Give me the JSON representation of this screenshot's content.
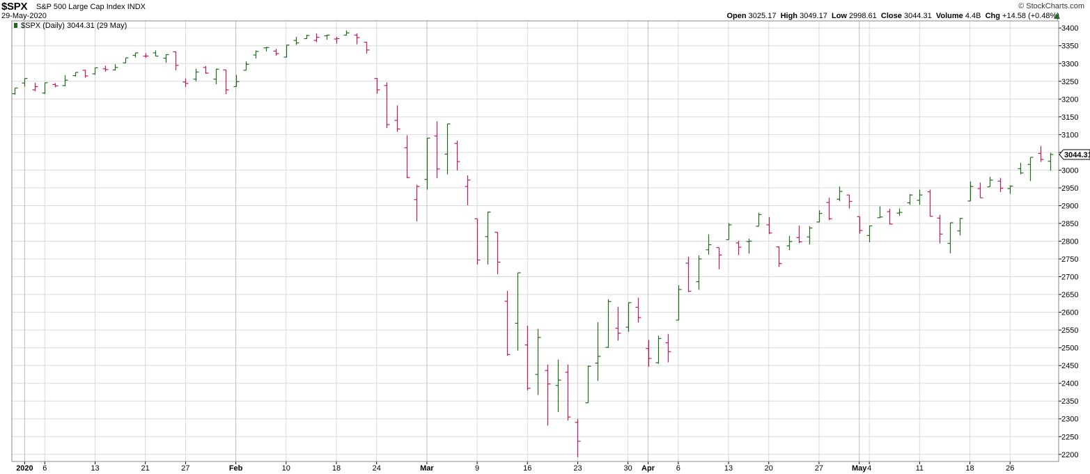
{
  "header": {
    "ticker": "$SPX",
    "company": "S&P 500 Large Cap Index",
    "exchange": "INDX",
    "date": "29-May-2020",
    "brand": "© StockCharts.com",
    "open_label": "Open",
    "open": "3025.17",
    "high_label": "High",
    "high": "3049.17",
    "low_label": "Low",
    "low": "2998.61",
    "close_label": "Close",
    "close": "3044.31",
    "volume_label": "Volume",
    "volume": "4.4B",
    "chg_label": "Chg",
    "chg": "+14.58 (+0.48%)"
  },
  "legend_text": "$SPX (Daily) 3044.31 (29 May)",
  "price_tag": "3044.31",
  "colors": {
    "up": "#1e6b1e",
    "down": "#c2185b",
    "grid": "#d9d9d9",
    "axis": "#000000"
  },
  "chart_data": {
    "type": "ohlc",
    "ylim": [
      2180,
      3420
    ],
    "y_ticks": [
      2200,
      2250,
      2300,
      2350,
      2400,
      2450,
      2500,
      2550,
      2600,
      2650,
      2700,
      2750,
      2800,
      2850,
      2900,
      2950,
      3000,
      3050,
      3100,
      3150,
      3200,
      3250,
      3300,
      3350,
      3400
    ],
    "x_labels": [
      {
        "text": "2020",
        "bar": 1,
        "bold": true
      },
      {
        "text": "6",
        "bar": 3
      },
      {
        "text": "13",
        "bar": 8
      },
      {
        "text": "21",
        "bar": 13
      },
      {
        "text": "27",
        "bar": 17
      },
      {
        "text": "Feb",
        "bar": 22,
        "bold": true
      },
      {
        "text": "10",
        "bar": 27
      },
      {
        "text": "18",
        "bar": 32
      },
      {
        "text": "24",
        "bar": 36
      },
      {
        "text": "Mar",
        "bar": 41,
        "bold": true
      },
      {
        "text": "9",
        "bar": 46
      },
      {
        "text": "16",
        "bar": 51
      },
      {
        "text": "23",
        "bar": 56
      },
      {
        "text": "30",
        "bar": 61
      },
      {
        "text": "Apr",
        "bar": 63,
        "bold": true
      },
      {
        "text": "6",
        "bar": 66
      },
      {
        "text": "13",
        "bar": 71
      },
      {
        "text": "20",
        "bar": 75
      },
      {
        "text": "27",
        "bar": 80
      },
      {
        "text": "May",
        "bar": 84,
        "bold": true
      },
      {
        "text": "4",
        "bar": 85
      },
      {
        "text": "11",
        "bar": 90
      },
      {
        "text": "18",
        "bar": 95
      },
      {
        "text": "26",
        "bar": 99
      }
    ],
    "dates": [
      "2019-12-31",
      "2020-01-02",
      "2020-01-03",
      "2020-01-06",
      "2020-01-07",
      "2020-01-08",
      "2020-01-09",
      "2020-01-10",
      "2020-01-13",
      "2020-01-14",
      "2020-01-15",
      "2020-01-16",
      "2020-01-17",
      "2020-01-21",
      "2020-01-22",
      "2020-01-23",
      "2020-01-24",
      "2020-01-27",
      "2020-01-28",
      "2020-01-29",
      "2020-01-30",
      "2020-01-31",
      "2020-02-03",
      "2020-02-04",
      "2020-02-05",
      "2020-02-06",
      "2020-02-07",
      "2020-02-10",
      "2020-02-11",
      "2020-02-12",
      "2020-02-13",
      "2020-02-14",
      "2020-02-18",
      "2020-02-19",
      "2020-02-20",
      "2020-02-21",
      "2020-02-24",
      "2020-02-25",
      "2020-02-26",
      "2020-02-27",
      "2020-02-28",
      "2020-03-02",
      "2020-03-03",
      "2020-03-04",
      "2020-03-05",
      "2020-03-06",
      "2020-03-09",
      "2020-03-10",
      "2020-03-11",
      "2020-03-12",
      "2020-03-13",
      "2020-03-16",
      "2020-03-17",
      "2020-03-18",
      "2020-03-19",
      "2020-03-20",
      "2020-03-23",
      "2020-03-24",
      "2020-03-25",
      "2020-03-26",
      "2020-03-27",
      "2020-03-30",
      "2020-03-31",
      "2020-04-01",
      "2020-04-02",
      "2020-04-03",
      "2020-04-06",
      "2020-04-07",
      "2020-04-08",
      "2020-04-09",
      "2020-04-13",
      "2020-04-14",
      "2020-04-15",
      "2020-04-16",
      "2020-04-17",
      "2020-04-20",
      "2020-04-21",
      "2020-04-22",
      "2020-04-23",
      "2020-04-24",
      "2020-04-27",
      "2020-04-28",
      "2020-04-29",
      "2020-04-30",
      "2020-05-01",
      "2020-05-04",
      "2020-05-05",
      "2020-05-06",
      "2020-05-07",
      "2020-05-08",
      "2020-05-11",
      "2020-05-12",
      "2020-05-13",
      "2020-05-14",
      "2020-05-15",
      "2020-05-18",
      "2020-05-19",
      "2020-05-20",
      "2020-05-21",
      "2020-05-22",
      "2020-05-26",
      "2020-05-27",
      "2020-05-28",
      "2020-05-29"
    ],
    "ohlc": [
      [
        3215,
        3231,
        3212,
        3231
      ],
      [
        3245,
        3258,
        3235,
        3258
      ],
      [
        3226,
        3246,
        3222,
        3235
      ],
      [
        3217,
        3246,
        3214,
        3246
      ],
      [
        3241,
        3245,
        3233,
        3237
      ],
      [
        3238,
        3267,
        3236,
        3253
      ],
      [
        3266,
        3275,
        3263,
        3275
      ],
      [
        3281,
        3282,
        3260,
        3265
      ],
      [
        3271,
        3288,
        3268,
        3288
      ],
      [
        3285,
        3294,
        3277,
        3283
      ],
      [
        3282,
        3298,
        3280,
        3289
      ],
      [
        3302,
        3316,
        3301,
        3316
      ],
      [
        3323,
        3330,
        3317,
        3330
      ],
      [
        3321,
        3329,
        3316,
        3321
      ],
      [
        3330,
        3337,
        3320,
        3321
      ],
      [
        3315,
        3326,
        3302,
        3325
      ],
      [
        3333,
        3334,
        3281,
        3295
      ],
      [
        3248,
        3258,
        3234,
        3244
      ],
      [
        3256,
        3285,
        3250,
        3276
      ],
      [
        3289,
        3293,
        3271,
        3273
      ],
      [
        3256,
        3285,
        3242,
        3284
      ],
      [
        3282,
        3282,
        3214,
        3226
      ],
      [
        3235,
        3268,
        3235,
        3249
      ],
      [
        3281,
        3306,
        3281,
        3298
      ],
      [
        3324,
        3337,
        3314,
        3334
      ],
      [
        3344,
        3347,
        3334,
        3345
      ],
      [
        3335,
        3341,
        3322,
        3328
      ],
      [
        3318,
        3352,
        3317,
        3352
      ],
      [
        3365,
        3375,
        3352,
        3358
      ],
      [
        3370,
        3381,
        3369,
        3379
      ],
      [
        3365,
        3385,
        3360,
        3374
      ],
      [
        3378,
        3381,
        3367,
        3380
      ],
      [
        3369,
        3375,
        3356,
        3370
      ],
      [
        3380,
        3393,
        3379,
        3386
      ],
      [
        3380,
        3385,
        3354,
        3373
      ],
      [
        3360,
        3361,
        3328,
        3338
      ],
      [
        3258,
        3259,
        3215,
        3226
      ],
      [
        3238,
        3247,
        3118,
        3128
      ],
      [
        3140,
        3182,
        3108,
        3116
      ],
      [
        3063,
        3098,
        2977,
        2979
      ],
      [
        2917,
        2959,
        2856,
        2954
      ],
      [
        2974,
        3090,
        2945,
        3090
      ],
      [
        3096,
        3137,
        2977,
        3003
      ],
      [
        3045,
        3130,
        2988,
        3130
      ],
      [
        3075,
        3083,
        2999,
        3024
      ],
      [
        2954,
        2985,
        2901,
        2972
      ],
      [
        2863,
        2863,
        2734,
        2747
      ],
      [
        2813,
        2883,
        2734,
        2882
      ],
      [
        2825,
        2825,
        2707,
        2741
      ],
      [
        2631,
        2660,
        2478,
        2481
      ],
      [
        2569,
        2711,
        2492,
        2711
      ],
      [
        2508,
        2562,
        2380,
        2386
      ],
      [
        2425,
        2553,
        2367,
        2529
      ],
      [
        2436,
        2453,
        2281,
        2398
      ],
      [
        2394,
        2467,
        2319,
        2409
      ],
      [
        2431,
        2453,
        2295,
        2305
      ],
      [
        2290,
        2300,
        2192,
        2237
      ],
      [
        2345,
        2450,
        2345,
        2448
      ],
      [
        2457,
        2572,
        2407,
        2476
      ],
      [
        2501,
        2637,
        2500,
        2630
      ],
      [
        2555,
        2615,
        2520,
        2541
      ],
      [
        2558,
        2627,
        2545,
        2627
      ],
      [
        2614,
        2641,
        2571,
        2585
      ],
      [
        2498,
        2522,
        2447,
        2470
      ],
      [
        2458,
        2534,
        2455,
        2526
      ],
      [
        2514,
        2539,
        2459,
        2489
      ],
      [
        2578,
        2676,
        2578,
        2664
      ],
      [
        2738,
        2756,
        2657,
        2659
      ],
      [
        2686,
        2760,
        2663,
        2750
      ],
      [
        2776,
        2819,
        2762,
        2790
      ],
      [
        2782,
        2782,
        2721,
        2761
      ],
      [
        2804,
        2851,
        2804,
        2846
      ],
      [
        2795,
        2801,
        2761,
        2783
      ],
      [
        2799,
        2807,
        2765,
        2800
      ],
      [
        2842,
        2880,
        2842,
        2875
      ],
      [
        2846,
        2868,
        2820,
        2823
      ],
      [
        2784,
        2785,
        2728,
        2737
      ],
      [
        2787,
        2815,
        2775,
        2799
      ],
      [
        2810,
        2844,
        2794,
        2798
      ],
      [
        2812,
        2842,
        2791,
        2837
      ],
      [
        2854,
        2887,
        2853,
        2878
      ],
      [
        2909,
        2922,
        2859,
        2863
      ],
      [
        2918,
        2954,
        2913,
        2940
      ],
      [
        2930,
        2930,
        2892,
        2912
      ],
      [
        2869,
        2869,
        2821,
        2830
      ],
      [
        2816,
        2844,
        2797,
        2843
      ],
      [
        2866,
        2898,
        2865,
        2868
      ],
      [
        2883,
        2891,
        2847,
        2848
      ],
      [
        2879,
        2892,
        2871,
        2881
      ],
      [
        2908,
        2932,
        2902,
        2930
      ],
      [
        2915,
        2945,
        2902,
        2930
      ],
      [
        2939,
        2945,
        2869,
        2870
      ],
      [
        2865,
        2874,
        2794,
        2820
      ],
      [
        2794,
        2852,
        2766,
        2852
      ],
      [
        2829,
        2865,
        2816,
        2864
      ],
      [
        2913,
        2968,
        2913,
        2954
      ],
      [
        2948,
        2965,
        2922,
        2922
      ],
      [
        2953,
        2981,
        2953,
        2972
      ],
      [
        2969,
        2978,
        2938,
        2949
      ],
      [
        2948,
        2957,
        2933,
        2955
      ],
      [
        3004,
        3021,
        2988,
        2992
      ],
      [
        3016,
        3036,
        2969,
        3036
      ],
      [
        3047,
        3068,
        3023,
        3030
      ],
      [
        3025,
        3049,
        2999,
        3044
      ]
    ]
  }
}
